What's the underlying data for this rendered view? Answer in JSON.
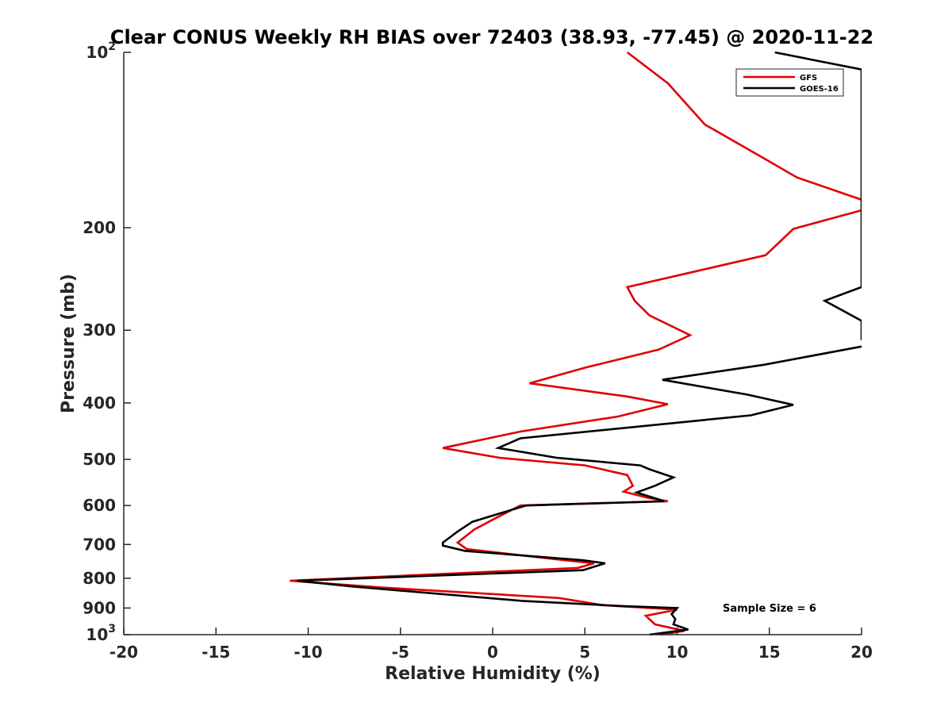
{
  "chart_data": {
    "type": "line",
    "title": "Clear CONUS Weekly RH BIAS over 72403 (38.93, -77.45) @ 2020-11-22",
    "xlabel": "Relative Humidity (%)",
    "ylabel": "Pressure (mb)",
    "xlim": [
      -20,
      20
    ],
    "ylim": [
      100,
      1000
    ],
    "y_scale": "log",
    "y_reversed": true,
    "grid": false,
    "legend_position": "top-right",
    "x_ticks": [
      "-20",
      "-15",
      "-10",
      "-5",
      "0",
      "5",
      "10",
      "15",
      "20"
    ],
    "x_tick_values": [
      -20,
      -15,
      -10,
      -5,
      0,
      5,
      10,
      15,
      20
    ],
    "y_ticks": [
      {
        "value": 100,
        "base": "10",
        "exp": "2"
      },
      {
        "value": 200,
        "label": "200"
      },
      {
        "value": 300,
        "label": "300"
      },
      {
        "value": 400,
        "label": "400"
      },
      {
        "value": 500,
        "label": "500"
      },
      {
        "value": 600,
        "label": "600"
      },
      {
        "value": 700,
        "label": "700"
      },
      {
        "value": 800,
        "label": "800"
      },
      {
        "value": 900,
        "label": "900"
      },
      {
        "value": 1000,
        "base": "10",
        "exp": "3"
      }
    ],
    "annotation": "Sample Size = 6",
    "series": [
      {
        "name": "GFS",
        "color": "#e00000",
        "points": [
          [
            7.3,
            100
          ],
          [
            9.5,
            113
          ],
          [
            11.5,
            133
          ],
          [
            14.7,
            152
          ],
          [
            16.5,
            164
          ],
          [
            20.2,
            180
          ],
          [
            20.2,
            186
          ],
          [
            16.3,
            201
          ],
          [
            14.8,
            223
          ],
          [
            7.3,
            253
          ],
          [
            7.7,
            267
          ],
          [
            8.5,
            283
          ],
          [
            10.7,
            306
          ],
          [
            9.0,
            324
          ],
          [
            5.0,
            348
          ],
          [
            2.0,
            370
          ],
          [
            7.3,
            390
          ],
          [
            9.5,
            402
          ],
          [
            6.8,
            422
          ],
          [
            1.5,
            448
          ],
          [
            -2.7,
            478
          ],
          [
            0.4,
            497
          ],
          [
            5.0,
            512
          ],
          [
            7.3,
            532
          ],
          [
            7.6,
            555
          ],
          [
            7.1,
            568
          ],
          [
            8.5,
            583
          ],
          [
            9.5,
            590
          ],
          [
            1.5,
            600
          ],
          [
            0.2,
            630
          ],
          [
            -1.0,
            660
          ],
          [
            -1.9,
            695
          ],
          [
            -1.4,
            713
          ],
          [
            3.9,
            745
          ],
          [
            5.5,
            754
          ],
          [
            4.6,
            768
          ],
          [
            -11.0,
            808
          ],
          [
            -6.0,
            830
          ],
          [
            3.6,
            865
          ],
          [
            6.0,
            890
          ],
          [
            10.0,
            906
          ],
          [
            8.3,
            928
          ],
          [
            8.8,
            960
          ],
          [
            10.4,
            985
          ],
          [
            9.1,
            1000
          ]
        ]
      },
      {
        "name": "GOES-16",
        "color": "#000000",
        "points": [
          [
            15.3,
            100
          ],
          [
            20.0,
            107
          ],
          [
            20.0,
            253
          ],
          [
            18.0,
            267
          ],
          [
            20.0,
            289
          ],
          [
            20.0,
            311
          ],
          [
            20.3,
            314
          ],
          [
            20.0,
            320
          ],
          [
            14.7,
            344
          ],
          [
            9.2,
            365
          ],
          [
            13.8,
            387
          ],
          [
            16.3,
            403
          ],
          [
            14.0,
            420
          ],
          [
            1.5,
            460
          ],
          [
            0.3,
            478
          ],
          [
            3.5,
            497
          ],
          [
            8.0,
            512
          ],
          [
            8.5,
            520
          ],
          [
            9.8,
            537
          ],
          [
            8.8,
            555
          ],
          [
            7.8,
            570
          ],
          [
            9.3,
            590
          ],
          [
            1.8,
            600
          ],
          [
            -1.1,
            640
          ],
          [
            -1.9,
            665
          ],
          [
            -2.7,
            695
          ],
          [
            -2.7,
            703
          ],
          [
            -1.5,
            718
          ],
          [
            4.9,
            745
          ],
          [
            6.1,
            754
          ],
          [
            4.9,
            775
          ],
          [
            -10.6,
            808
          ],
          [
            -7.7,
            826
          ],
          [
            1.6,
            875
          ],
          [
            7.0,
            893
          ],
          [
            10.0,
            900
          ],
          [
            9.7,
            922
          ],
          [
            9.9,
            940
          ],
          [
            9.8,
            960
          ],
          [
            10.6,
            980
          ],
          [
            8.5,
            1000
          ]
        ]
      }
    ]
  }
}
